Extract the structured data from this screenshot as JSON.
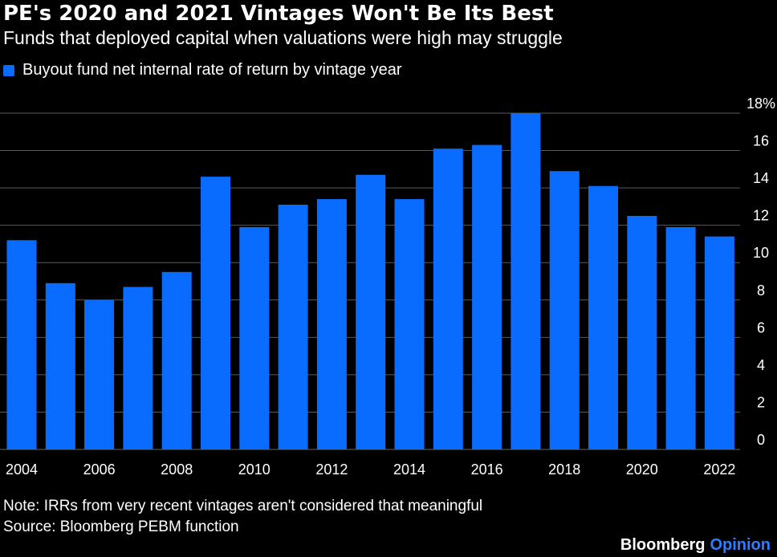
{
  "header": {
    "title": "PE's 2020 and 2021 Vintages Won't Be Its Best",
    "subtitle": "Funds that deployed capital when valuations were high may struggle"
  },
  "legend": {
    "label": "Buyout fund net internal rate of return by vintage year",
    "color": "#0a6cff"
  },
  "chart_data": {
    "type": "bar",
    "title": "PE's 2020 and 2021 Vintages Won't Be Its Best",
    "subtitle": "Funds that deployed capital when valuations were high may struggle",
    "categories": [
      "2004",
      "2005",
      "2006",
      "2007",
      "2008",
      "2009",
      "2010",
      "2011",
      "2012",
      "2013",
      "2014",
      "2015",
      "2016",
      "2017",
      "2018",
      "2019",
      "2020",
      "2021",
      "2022"
    ],
    "series": [
      {
        "name": "Buyout fund net internal rate of return by vintage year",
        "values": [
          11.2,
          8.9,
          8.0,
          8.7,
          9.5,
          14.6,
          11.9,
          13.1,
          13.4,
          14.7,
          13.4,
          16.1,
          16.3,
          18.0,
          14.9,
          14.1,
          12.5,
          11.9,
          11.4
        ]
      }
    ],
    "ylim": [
      0,
      18
    ],
    "yticks": [
      0,
      2,
      4,
      6,
      8,
      10,
      12,
      14,
      16,
      18
    ],
    "ytick_labels": [
      "0",
      "2",
      "4",
      "6",
      "8",
      "10",
      "12",
      "14",
      "16",
      "18%"
    ],
    "xtick_labels": [
      "2004",
      "2006",
      "2008",
      "2010",
      "2012",
      "2014",
      "2016",
      "2018",
      "2020",
      "2022"
    ],
    "xlabel": "",
    "ylabel": "",
    "grid": true,
    "y_axis_side": "right",
    "bar_color": "#0a6cff"
  },
  "footer": {
    "note": "Note: IRRs from very recent vintages aren't considered that meaningful",
    "source": "Source: Bloomberg PEBM function",
    "brand_main": "Bloomberg",
    "brand_sub": "Opinion"
  }
}
